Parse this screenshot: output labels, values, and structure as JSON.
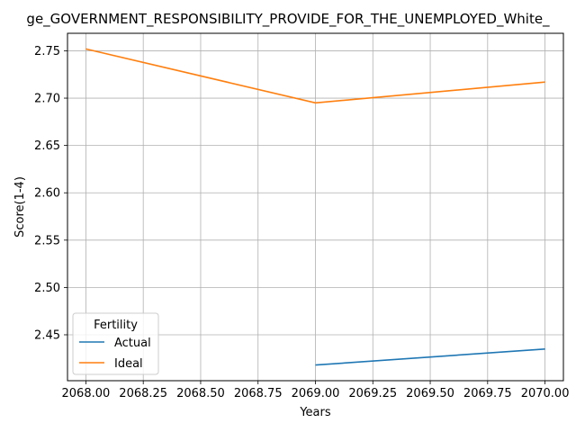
{
  "chart_data": {
    "type": "line",
    "title": "ge_GOVERNMENT_RESPONSIBILITY_PROVIDE_FOR_THE_UNEMPLOYED_White_",
    "xlabel": "Years",
    "ylabel": "Score(1-4)",
    "xlim": [
      2067.92,
      2070.08
    ],
    "ylim": [
      2.4015,
      2.7685
    ],
    "x_ticks": [
      "2068.00",
      "2068.25",
      "2068.50",
      "2068.75",
      "2069.00",
      "2069.25",
      "2069.50",
      "2069.75",
      "2070.00"
    ],
    "y_ticks": [
      "2.45",
      "2.50",
      "2.55",
      "2.60",
      "2.65",
      "2.70",
      "2.75"
    ],
    "grid": true,
    "legend": {
      "title": "Fertility",
      "placement": "lower-left"
    },
    "series": [
      {
        "name": "Actual",
        "color": "#1f77b4",
        "x": [
          2069,
          2070
        ],
        "y": [
          2.418,
          2.435
        ]
      },
      {
        "name": "Ideal",
        "color": "#ff7f0e",
        "x": [
          2068,
          2069,
          2070
        ],
        "y": [
          2.752,
          2.695,
          2.717
        ]
      }
    ]
  }
}
